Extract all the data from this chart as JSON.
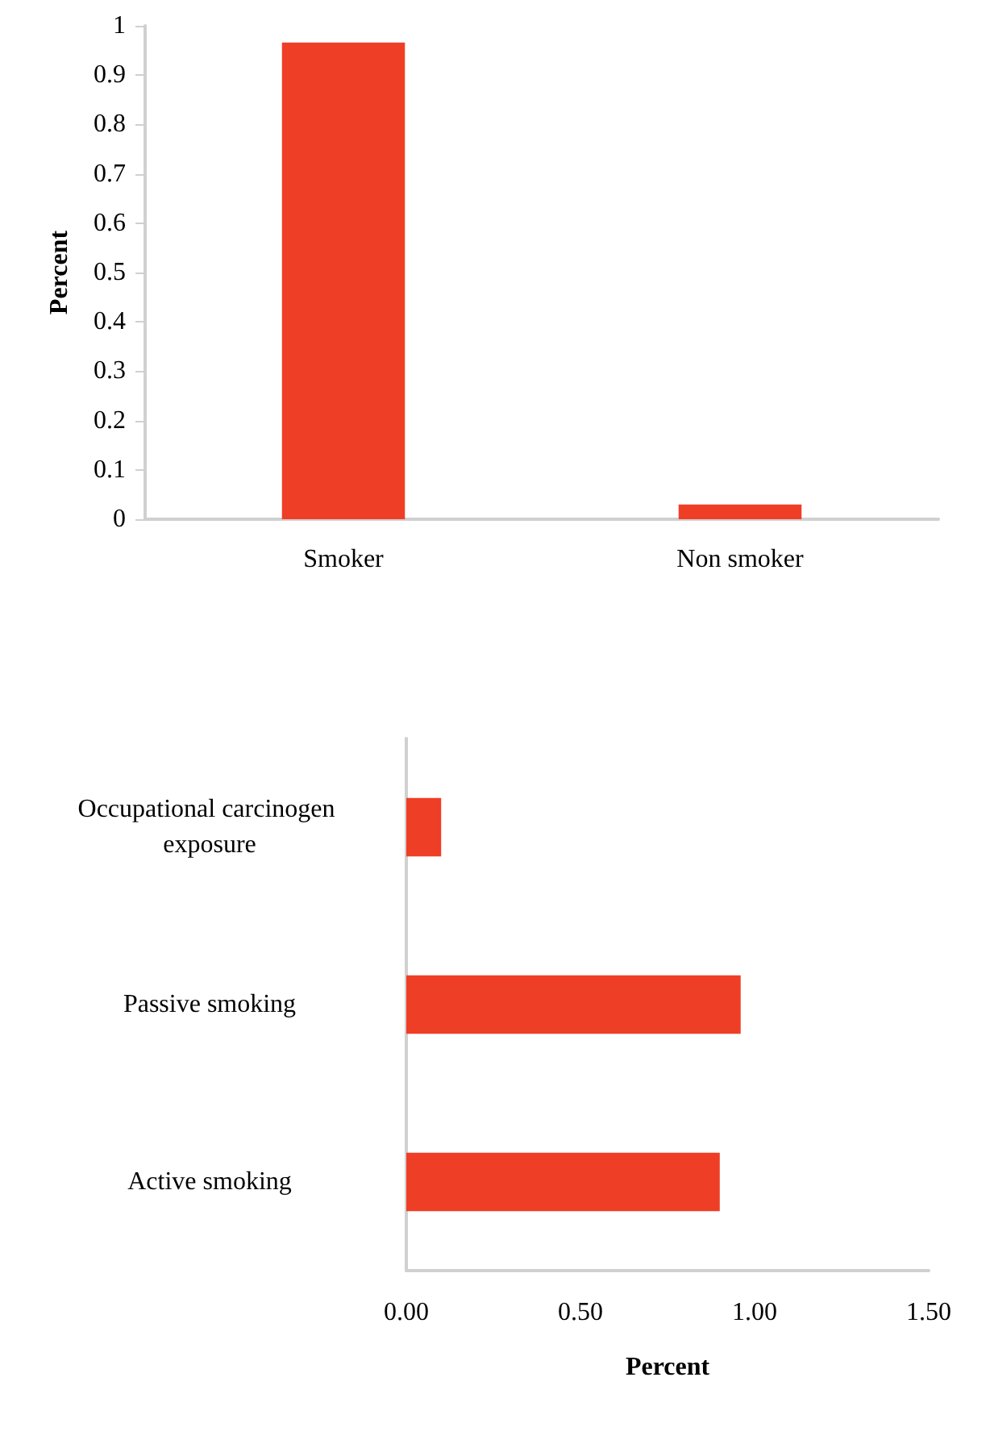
{
  "chart_data": [
    {
      "type": "bar",
      "ylabel": "Percent",
      "categories": [
        "Smoker",
        "Non smoker"
      ],
      "values": [
        0.966,
        0.03
      ],
      "color": "#ef3e26",
      "ylim": [
        0,
        1
      ],
      "yticks": [
        0,
        0.1,
        0.2,
        0.3,
        0.4,
        0.5,
        0.6,
        0.7,
        0.8,
        0.9,
        1
      ],
      "grid": false
    },
    {
      "type": "bar",
      "orientation": "horizontal",
      "xlabel": "Percent",
      "categories": [
        "Occupational carcinogen exposure",
        "Passive smoking",
        "Active smoking"
      ],
      "values": [
        0.1,
        0.96,
        0.9
      ],
      "color": "#ef3e26",
      "xlim": [
        0,
        1.5
      ],
      "xticks": [
        {
          "value": 0,
          "label": "0.00"
        },
        {
          "value": 0.5,
          "label": "0.50"
        },
        {
          "value": 1,
          "label": "1.00"
        },
        {
          "value": 1.5,
          "label": "1.50"
        }
      ],
      "grid": false
    }
  ]
}
